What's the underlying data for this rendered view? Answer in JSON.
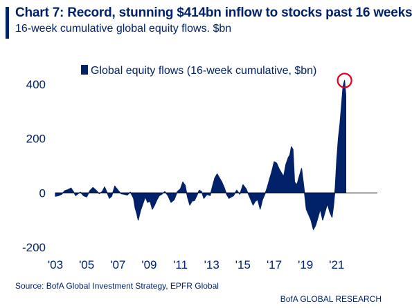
{
  "header": {
    "title": "Chart 7: Record, stunning $414bn inflow to stocks past 16 weeks",
    "subtitle": "16-week cumulative global equity flows. $bn"
  },
  "footer": {
    "source": "Source:  BofA Global Investment Strategy, EPFR Global",
    "brand": "BofA GLOBAL RESEARCH"
  },
  "colors": {
    "series": "#012169",
    "highlight": "#e0001b",
    "text": "#012169"
  },
  "chart_data": {
    "type": "area",
    "title": "Chart 7: Record, stunning $414bn inflow to stocks past 16 weeks",
    "subtitle": "16-week cumulative global equity flows. $bn",
    "xlabel": "",
    "ylabel": "",
    "ylim": [
      -200,
      450
    ],
    "xlim": [
      2003.0,
      2023.6
    ],
    "yticks": [
      400,
      200,
      0,
      -200
    ],
    "ytick_labels": [
      "400",
      "200",
      "0",
      "-200"
    ],
    "xticks": [
      2003,
      2005,
      2007,
      2009,
      2011,
      2013,
      2015,
      2017,
      2019,
      2021
    ],
    "xtick_labels": [
      "'03",
      "'05",
      "'07",
      "'09",
      "'11",
      "'13",
      "'15",
      "'17",
      "'19",
      "'21"
    ],
    "legend": "top-center",
    "grid": false,
    "series": [
      {
        "name": "Global equity flows (16-week cumulative, $bn)",
        "x": [
          2003.0,
          2003.2,
          2003.4,
          2003.6,
          2003.8,
          2004.0,
          2004.15,
          2004.3,
          2004.45,
          2004.6,
          2004.8,
          2005.0,
          2005.2,
          2005.4,
          2005.6,
          2005.8,
          2006.0,
          2006.15,
          2006.3,
          2006.45,
          2006.6,
          2006.8,
          2007.0,
          2007.2,
          2007.4,
          2007.6,
          2007.8,
          2008.0,
          2008.1,
          2008.2,
          2008.3,
          2008.45,
          2008.6,
          2008.75,
          2008.9,
          2009.05,
          2009.2,
          2009.35,
          2009.5,
          2009.65,
          2009.8,
          2010.0,
          2010.2,
          2010.4,
          2010.6,
          2010.8,
          2011.0,
          2011.15,
          2011.3,
          2011.45,
          2011.6,
          2011.75,
          2011.9,
          2012.05,
          2012.2,
          2012.35,
          2012.5,
          2012.7,
          2012.9,
          2013.05,
          2013.2,
          2013.35,
          2013.5,
          2013.65,
          2013.8,
          2013.95,
          2014.1,
          2014.25,
          2014.4,
          2014.6,
          2014.8,
          2015.0,
          2015.2,
          2015.35,
          2015.5,
          2015.65,
          2015.8,
          2015.95,
          2016.1,
          2016.25,
          2016.4,
          2016.55,
          2016.7,
          2016.85,
          2017.0,
          2017.15,
          2017.3,
          2017.45,
          2017.6,
          2017.75,
          2017.9,
          2018.0,
          2018.1,
          2018.2,
          2018.3,
          2018.45,
          2018.6,
          2018.75,
          2018.9,
          2019.05,
          2019.2,
          2019.35,
          2019.5,
          2019.65,
          2019.8,
          2019.95,
          2020.1,
          2020.25,
          2020.4,
          2020.55,
          2020.7,
          2020.8,
          2020.9,
          2021.0,
          2021.1,
          2021.2,
          2021.3,
          2021.4,
          2021.5,
          2021.58
        ],
        "values": [
          -12,
          -10,
          -5,
          8,
          12,
          18,
          5,
          -10,
          -3,
          3,
          -10,
          -15,
          8,
          20,
          10,
          -3,
          5,
          22,
          2,
          -20,
          -12,
          25,
          10,
          -3,
          -5,
          -8,
          3,
          -20,
          -55,
          -75,
          -100,
          -65,
          -40,
          -15,
          -35,
          -30,
          -60,
          -45,
          -25,
          -10,
          -5,
          5,
          -10,
          -35,
          -25,
          5,
          15,
          40,
          28,
          -15,
          -45,
          -30,
          -28,
          -10,
          10,
          5,
          -20,
          -5,
          -10,
          25,
          55,
          70,
          55,
          40,
          20,
          -5,
          -20,
          -15,
          -10,
          10,
          -5,
          30,
          15,
          -5,
          -25,
          -45,
          -30,
          -25,
          -60,
          -25,
          -5,
          20,
          50,
          80,
          115,
          110,
          90,
          75,
          60,
          105,
          130,
          140,
          170,
          160,
          40,
          30,
          60,
          90,
          20,
          -60,
          -80,
          -100,
          -135,
          -120,
          -90,
          -60,
          -100,
          -70,
          -40,
          -70,
          -90,
          -45,
          20,
          120,
          200,
          250,
          320,
          390,
          414,
          360
        ]
      }
    ],
    "annotations": [
      {
        "type": "circle",
        "label": "",
        "x": 2021.5,
        "y": 414
      }
    ]
  }
}
